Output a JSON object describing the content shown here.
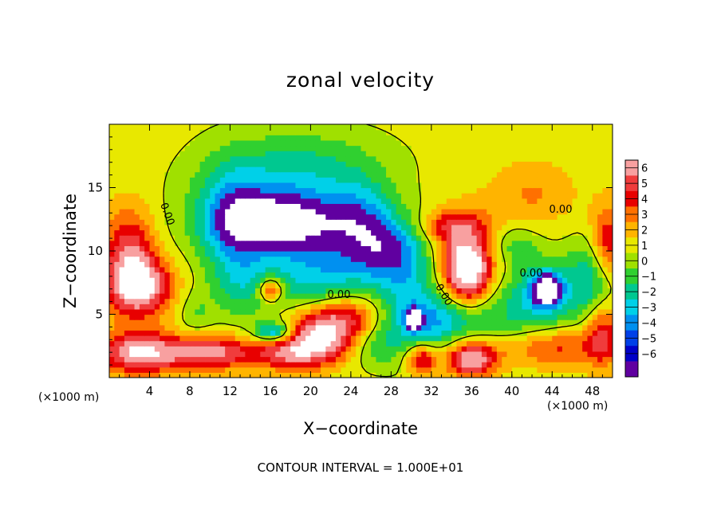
{
  "chart_data": {
    "type": "heatmap",
    "title": "zonal velocity",
    "xlabel": "X−coordinate",
    "ylabel": "Z−coordinate",
    "x_unit": "(×1000 m)",
    "xlim": [
      0,
      50
    ],
    "ylim": [
      0,
      20
    ],
    "x_ticks": [
      4,
      8,
      12,
      16,
      20,
      24,
      28,
      32,
      36,
      40,
      44,
      48
    ],
    "y_ticks": [
      5,
      10,
      15
    ],
    "colorbar": {
      "ticks": [
        6,
        5,
        4,
        3,
        2,
        1,
        0,
        -1,
        -2,
        -3,
        -4,
        -5,
        -6
      ],
      "tick_labels": [
        "6",
        "5",
        "4",
        "3",
        "2",
        "1",
        "0",
        "−1",
        "−2",
        "−3",
        "−4",
        "−5",
        "−6"
      ],
      "colors": [
        "#f8a0a0",
        "#f03c3c",
        "#e80000",
        "#ff7000",
        "#ffb400",
        "#e8e800",
        "#a0e000",
        "#30d030",
        "#00c890",
        "#00d0e8",
        "#0090f0",
        "#0040e8",
        "#0000c8",
        "#6000a0"
      ]
    },
    "contour_labels": [
      "0.00",
      "0.00",
      "0.00",
      "0.00",
      "0.00"
    ],
    "contour_interval": "CONTOUR INTERVAL = 1.000E+01",
    "background_value": 0.5,
    "features": [
      {
        "cx": 16.5,
        "cz": 12.5,
        "rx": 8,
        "rz": 3.6,
        "v": -4.6,
        "p": 2
      },
      {
        "cx": 17,
        "cz": 12.3,
        "rx": 6,
        "rz": 2.4,
        "v": -2.6,
        "p": 3
      },
      {
        "cx": 12,
        "cz": 13,
        "rx": 3,
        "rz": 4,
        "v": -2.5,
        "p": 2
      },
      {
        "cx": 19,
        "cz": 17,
        "rx": 9,
        "rz": 3,
        "v": -2.2,
        "p": 2
      },
      {
        "cx": 25,
        "cz": 12.5,
        "rx": 3.5,
        "rz": 3,
        "v": -3.5,
        "p": 2
      },
      {
        "cx": 28,
        "cz": 10,
        "rx": 4,
        "rz": 2.5,
        "v": -4,
        "p": 2
      },
      {
        "cx": 21,
        "cz": 7.5,
        "rx": 5,
        "rz": 3.5,
        "v": -3.6,
        "p": 2
      },
      {
        "cx": 13,
        "cz": 7.5,
        "rx": 3,
        "rz": 3,
        "v": -2.5,
        "p": 2
      },
      {
        "cx": 16,
        "cz": 7,
        "rx": 1.2,
        "rz": 0.9,
        "v": 4.5,
        "p": 2
      },
      {
        "cx": 16.3,
        "cz": 3.6,
        "rx": 1.8,
        "rz": 0.8,
        "v": -5,
        "p": 2
      },
      {
        "cx": 30,
        "cz": 6,
        "rx": 4,
        "rz": 4,
        "v": -3.5,
        "p": 2
      },
      {
        "cx": 30.2,
        "cz": 4.6,
        "rx": 0.7,
        "rz": 0.7,
        "v": -7,
        "p": 2
      },
      {
        "cx": 33,
        "cz": 4.5,
        "rx": 5,
        "rz": 2,
        "v": -3.2,
        "p": 2
      },
      {
        "cx": 42,
        "cz": 6,
        "rx": 5,
        "rz": 3.5,
        "v": -3.5,
        "p": 2
      },
      {
        "cx": 43.5,
        "cz": 7,
        "rx": 1.5,
        "rz": 1.3,
        "v": -7,
        "p": 2
      },
      {
        "cx": 48,
        "cz": 8,
        "rx": 2.5,
        "rz": 3,
        "v": -3,
        "p": 2
      },
      {
        "cx": 26,
        "cz": 3,
        "rx": 3,
        "rz": 2,
        "v": -3,
        "p": 2
      },
      {
        "cx": 35.5,
        "cz": 9,
        "rx": 3.5,
        "rz": 3.5,
        "v": 5,
        "p": 2
      },
      {
        "cx": 35.5,
        "cz": 8.5,
        "rx": 2.1,
        "rz": 2.4,
        "v": 3.2,
        "p": 3
      },
      {
        "cx": 34,
        "cz": 12,
        "rx": 3,
        "rz": 1.2,
        "v": 3,
        "p": 2
      },
      {
        "cx": 24,
        "cz": 4.5,
        "rx": 4.5,
        "rz": 2.2,
        "v": 5,
        "p": 2
      },
      {
        "cx": 21,
        "cz": 3.5,
        "rx": 3.5,
        "rz": 2,
        "v": 4.5,
        "p": 2
      },
      {
        "cx": 10,
        "cz": 2,
        "rx": 4,
        "rz": 1.3,
        "v": 5,
        "p": 2
      },
      {
        "cx": 18,
        "cz": 2,
        "rx": 4,
        "rz": 1.3,
        "v": 4.5,
        "p": 2
      },
      {
        "cx": 36,
        "cz": 1.5,
        "rx": 2.5,
        "rz": 1.4,
        "v": 6,
        "p": 2
      },
      {
        "cx": 31,
        "cz": 1.5,
        "rx": 1.5,
        "rz": 1.2,
        "v": 4.5,
        "p": 2
      },
      {
        "cx": 44,
        "cz": 2.5,
        "rx": 5,
        "rz": 1.6,
        "v": 3.5,
        "p": 2
      },
      {
        "cx": 3,
        "cz": 7.2,
        "rx": 3.2,
        "rz": 2.3,
        "v": 6,
        "p": 2
      },
      {
        "cx": 2,
        "cz": 10,
        "rx": 2.5,
        "rz": 3.5,
        "v": 4,
        "p": 2
      },
      {
        "cx": 3,
        "cz": 2,
        "rx": 4,
        "rz": 1.6,
        "v": 6,
        "p": 2
      },
      {
        "cx": 49.5,
        "cz": 10.5,
        "rx": 1.6,
        "rz": 3,
        "v": 4,
        "p": 2
      },
      {
        "cx": 49,
        "cz": 3.5,
        "rx": 1.6,
        "rz": 2.5,
        "v": 3.5,
        "p": 2
      },
      {
        "cx": 42,
        "cz": 14.5,
        "rx": 4,
        "rz": 2.5,
        "v": 1.6,
        "p": 2
      },
      {
        "cx": 8.5,
        "cz": 5,
        "rx": 1.8,
        "rz": 2,
        "v": -1.5,
        "p": 2
      },
      {
        "cx": 40,
        "cz": 10.5,
        "rx": 2.5,
        "rz": 1.6,
        "v": -2,
        "p": 2
      }
    ]
  }
}
